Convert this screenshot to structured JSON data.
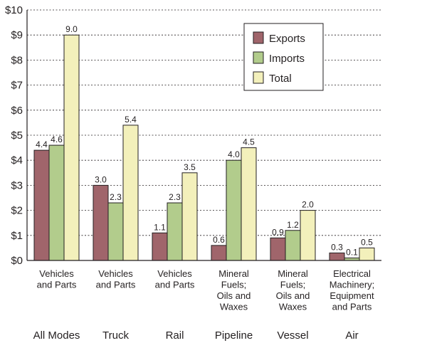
{
  "chart_data": {
    "type": "bar",
    "title": "",
    "xlabel": "",
    "ylabel": "",
    "ylim": [
      0,
      10
    ],
    "y_ticks": [
      "$0",
      "$1",
      "$2",
      "$3",
      "$4",
      "$5",
      "$6",
      "$7",
      "$8",
      "$9",
      "$10"
    ],
    "grid": true,
    "legend_position": "top-right",
    "modes": [
      "All Modes",
      "Truck",
      "Rail",
      "Pipeline",
      "Vessel",
      "Air"
    ],
    "categories": [
      [
        "Vehicles",
        "and Parts"
      ],
      [
        "Vehicles",
        "and Parts"
      ],
      [
        "Vehicles",
        "and Parts"
      ],
      [
        "Mineral",
        "Fuels;",
        "Oils and",
        "Waxes"
      ],
      [
        "Mineral",
        "Fuels;",
        "Oils and",
        "Waxes"
      ],
      [
        "Electrical",
        "Machinery;",
        "Equipment",
        "and Parts"
      ]
    ],
    "series": [
      {
        "name": "Exports",
        "color": "#a0656b",
        "values": [
          4.4,
          3.0,
          1.1,
          0.6,
          0.9,
          0.3
        ]
      },
      {
        "name": "Imports",
        "color": "#b2cc8c",
        "values": [
          4.6,
          2.3,
          2.3,
          4.0,
          1.2,
          0.1
        ]
      },
      {
        "name": "Total",
        "color": "#f3f0bb",
        "values": [
          9.0,
          5.4,
          3.5,
          4.5,
          2.0,
          0.5
        ]
      }
    ]
  }
}
